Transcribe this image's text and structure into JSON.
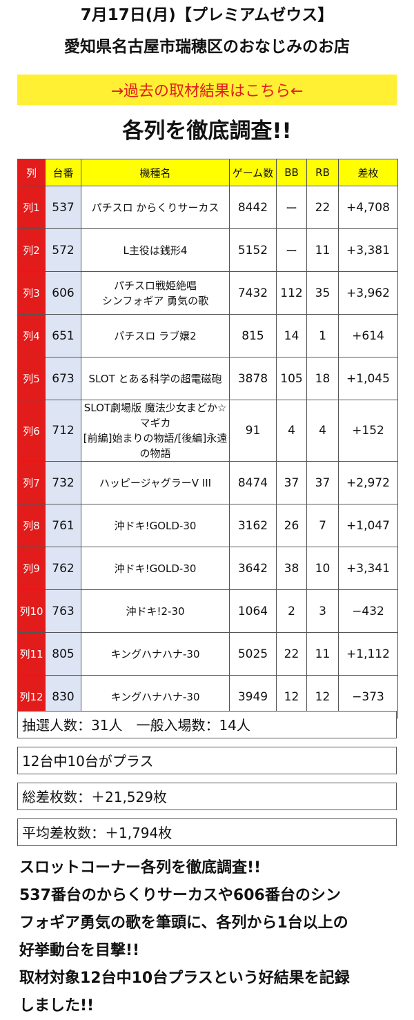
{
  "header": {
    "title": "7月17日(月)【プレミアムゼウス】",
    "subtitle": "愛知県名古屋市瑞穂区のおなじみのお店",
    "past_link": "→過去の取材結果はこちら←",
    "heading": "各列を徹底調査!!"
  },
  "table": {
    "columns": [
      "列",
      "台番",
      "機種名",
      "ゲーム数",
      "BB",
      "RB",
      "差枚"
    ],
    "rows": [
      {
        "retsu": "列1",
        "num": "537",
        "name1": "パチスロ からくりサーカス",
        "name2": "",
        "games": "8442",
        "bb": "ー",
        "rb": "22",
        "diff": "+4,708"
      },
      {
        "retsu": "列2",
        "num": "572",
        "name1": "L主役は銭形4",
        "name2": "",
        "games": "5152",
        "bb": "ー",
        "rb": "11",
        "diff": "+3,381"
      },
      {
        "retsu": "列3",
        "num": "606",
        "name1": "パチスロ戦姫絶唱",
        "name2": "シンフォギア 勇気の歌",
        "games": "7432",
        "bb": "112",
        "rb": "35",
        "diff": "+3,962"
      },
      {
        "retsu": "列4",
        "num": "651",
        "name1": "パチスロ ラブ嬢2",
        "name2": "",
        "games": "815",
        "bb": "14",
        "rb": "1",
        "diff": "+614"
      },
      {
        "retsu": "列5",
        "num": "673",
        "name1": "SLOT とある科学の超電磁砲",
        "name2": "",
        "games": "3878",
        "bb": "105",
        "rb": "18",
        "diff": "+1,045"
      },
      {
        "retsu": "列6",
        "num": "712",
        "name1": "SLOT劇場版 魔法少女まどか☆マギカ",
        "name2": "[前編]始まりの物語/[後編]永遠の物語",
        "games": "91",
        "bb": "4",
        "rb": "4",
        "diff": "+152"
      },
      {
        "retsu": "列7",
        "num": "732",
        "name1": "ハッピージャグラーV III",
        "name2": "",
        "games": "8474",
        "bb": "37",
        "rb": "37",
        "diff": "+2,972"
      },
      {
        "retsu": "列8",
        "num": "761",
        "name1": "沖ドキ!GOLD-30",
        "name2": "",
        "games": "3162",
        "bb": "26",
        "rb": "7",
        "diff": "+1,047"
      },
      {
        "retsu": "列9",
        "num": "762",
        "name1": "沖ドキ!GOLD-30",
        "name2": "",
        "games": "3642",
        "bb": "38",
        "rb": "10",
        "diff": "+3,341"
      },
      {
        "retsu": "列10",
        "num": "763",
        "name1": "沖ドキ!2-30",
        "name2": "",
        "games": "1064",
        "bb": "2",
        "rb": "3",
        "diff": "−432"
      },
      {
        "retsu": "列11",
        "num": "805",
        "name1": "キングハナハナ-30",
        "name2": "",
        "games": "5025",
        "bb": "22",
        "rb": "11",
        "diff": "+1,112"
      },
      {
        "retsu": "列12",
        "num": "830",
        "name1": "キングハナハナ-30",
        "name2": "",
        "games": "3949",
        "bb": "12",
        "rb": "12",
        "diff": "−373"
      }
    ]
  },
  "stats": {
    "entrants": "抽選人数：31人　一般入場数：14人",
    "plus_count": "12台中10台がプラス",
    "total_diff": "総差枚数：＋21,529枚",
    "avg_diff": "平均差枚数：＋1,794枚"
  },
  "summary": {
    "lines": [
      "スロットコーナー各列を徹底調査!!",
      "537番台のからくりサーカスや606番台のシン",
      "フォギア勇気の歌を筆頭に、各列から1台以上の",
      "好挙動台を目撃!!",
      "取材対象12台中10台プラスという好結果を記録",
      "しました!!"
    ]
  },
  "colors": {
    "banner_yellow": "#fff033",
    "header_yellow": "#ffff00",
    "retsu_red": "#e21b1b",
    "num_blue": "#dde4f4"
  }
}
